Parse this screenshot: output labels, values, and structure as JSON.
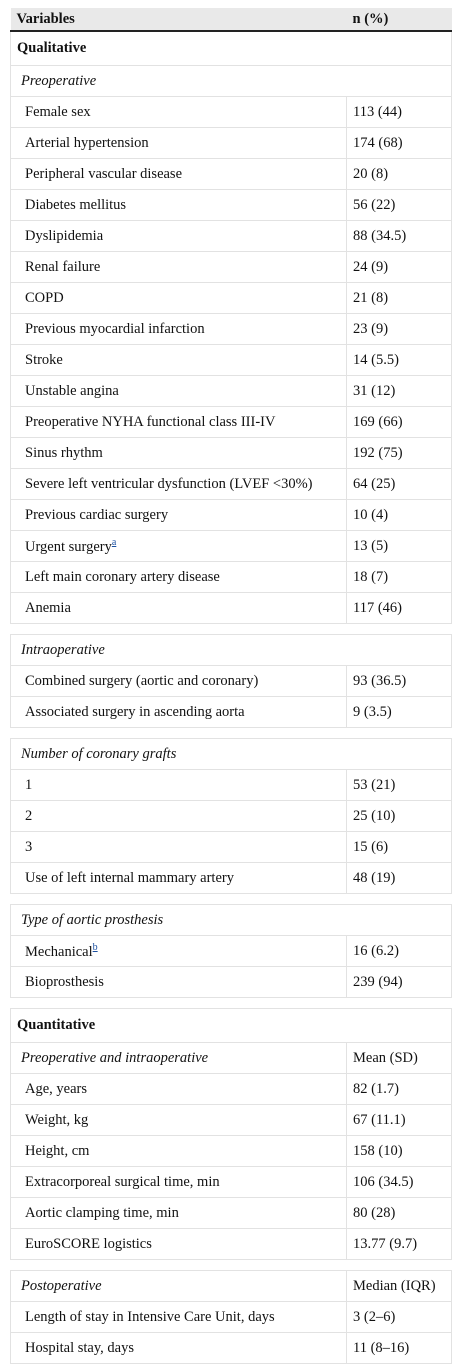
{
  "header": {
    "variable": "Variables",
    "n": "n (%)"
  },
  "sections": [
    {
      "title": "Qualitative",
      "groups": [
        {
          "title": "Preoperative",
          "rows": [
            {
              "label": "Female sex",
              "value": "113 (44)"
            },
            {
              "label": "Arterial hypertension",
              "value": "174 (68)"
            },
            {
              "label": "Peripheral vascular disease",
              "value": "20 (8)"
            },
            {
              "label": "Diabetes mellitus",
              "value": "56 (22)"
            },
            {
              "label": "Dyslipidemia",
              "value": "88 (34.5)"
            },
            {
              "label": "Renal failure",
              "value": "24 (9)"
            },
            {
              "label": "COPD",
              "value": "21 (8)"
            },
            {
              "label": "Previous myocardial infarction",
              "value": "23 (9)"
            },
            {
              "label": "Stroke",
              "value": "14 (5.5)"
            },
            {
              "label": "Unstable angina",
              "value": "31 (12)"
            },
            {
              "label": "Preoperative NYHA functional class III-IV",
              "value": "169 (66)"
            },
            {
              "label": "Sinus rhythm",
              "value": "192 (75)"
            },
            {
              "label": "Severe left ventricular dysfunction (LVEF <30%)",
              "value": "64 (25)"
            },
            {
              "label": "Previous cardiac surgery",
              "value": "10 (4)"
            },
            {
              "label": "Urgent surgery",
              "note": "a",
              "value": "13 (5)"
            },
            {
              "label": "Left main coronary artery disease",
              "value": "18 (7)"
            },
            {
              "label": "Anemia",
              "value": "117 (46)"
            }
          ]
        },
        {
          "title": "Intraoperative",
          "rows": [
            {
              "label": "Combined surgery (aortic and coronary)",
              "value": "93 (36.5)"
            },
            {
              "label": "Associated surgery in ascending aorta",
              "value": "9 (3.5)"
            }
          ]
        },
        {
          "title": "Number of coronary grafts",
          "rows": [
            {
              "label": "1",
              "value": "53 (21)"
            },
            {
              "label": "2",
              "value": "25 (10)"
            },
            {
              "label": "3",
              "value": "15 (6)"
            },
            {
              "label": "Use of left internal mammary artery",
              "value": "48 (19)"
            }
          ]
        },
        {
          "title": "Type of aortic prosthesis",
          "rows": [
            {
              "label": "Mechanical",
              "note": "b",
              "value": "16 (6.2)"
            },
            {
              "label": "Bioprosthesis",
              "value": "239 (94)"
            }
          ]
        }
      ]
    },
    {
      "title": "Quantitative",
      "groups": [
        {
          "title": "Preoperative and intraoperative",
          "stat": "Mean (SD)",
          "rows": [
            {
              "label": "Age, years",
              "value": "82 (1.7)"
            },
            {
              "label": "Weight, kg",
              "value": "67 (11.1)"
            },
            {
              "label": "Height, cm",
              "value": "158 (10)"
            },
            {
              "label": "Extracorporeal surgical time, min",
              "value": "106 (34.5)"
            },
            {
              "label": "Aortic clamping time, min",
              "value": "80 (28)"
            },
            {
              "label": "EuroSCORE logistics",
              "value": "13.77 (9.7)"
            }
          ]
        },
        {
          "title": "Postoperative",
          "stat": "Median (IQR)",
          "rows": [
            {
              "label": "Length of stay in Intensive Care Unit, days",
              "value": "3 (2–6)"
            },
            {
              "label": "Hospital stay, days",
              "value": "11 (8–16)"
            }
          ]
        }
      ]
    }
  ]
}
